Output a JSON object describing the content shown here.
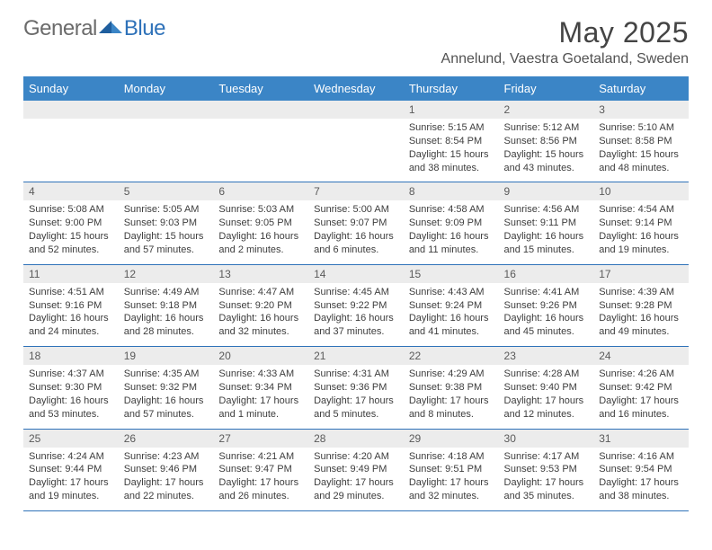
{
  "brand": {
    "part1": "General",
    "part2": "Blue"
  },
  "title": "May 2025",
  "location": "Annelund, Vaestra Goetaland, Sweden",
  "colors": {
    "header_bg": "#3b85c6",
    "header_text": "#ffffff",
    "daynum_bg": "#ececec",
    "rule": "#2f72b9",
    "brand_blue": "#2f72b9",
    "text": "#3d3d3d"
  },
  "weekdays": [
    "Sunday",
    "Monday",
    "Tuesday",
    "Wednesday",
    "Thursday",
    "Friday",
    "Saturday"
  ],
  "weeks": [
    [
      {
        "n": "",
        "sr": "",
        "ss": "",
        "dl": ""
      },
      {
        "n": "",
        "sr": "",
        "ss": "",
        "dl": ""
      },
      {
        "n": "",
        "sr": "",
        "ss": "",
        "dl": ""
      },
      {
        "n": "",
        "sr": "",
        "ss": "",
        "dl": ""
      },
      {
        "n": "1",
        "sr": "Sunrise: 5:15 AM",
        "ss": "Sunset: 8:54 PM",
        "dl": "Daylight: 15 hours and 38 minutes."
      },
      {
        "n": "2",
        "sr": "Sunrise: 5:12 AM",
        "ss": "Sunset: 8:56 PM",
        "dl": "Daylight: 15 hours and 43 minutes."
      },
      {
        "n": "3",
        "sr": "Sunrise: 5:10 AM",
        "ss": "Sunset: 8:58 PM",
        "dl": "Daylight: 15 hours and 48 minutes."
      }
    ],
    [
      {
        "n": "4",
        "sr": "Sunrise: 5:08 AM",
        "ss": "Sunset: 9:00 PM",
        "dl": "Daylight: 15 hours and 52 minutes."
      },
      {
        "n": "5",
        "sr": "Sunrise: 5:05 AM",
        "ss": "Sunset: 9:03 PM",
        "dl": "Daylight: 15 hours and 57 minutes."
      },
      {
        "n": "6",
        "sr": "Sunrise: 5:03 AM",
        "ss": "Sunset: 9:05 PM",
        "dl": "Daylight: 16 hours and 2 minutes."
      },
      {
        "n": "7",
        "sr": "Sunrise: 5:00 AM",
        "ss": "Sunset: 9:07 PM",
        "dl": "Daylight: 16 hours and 6 minutes."
      },
      {
        "n": "8",
        "sr": "Sunrise: 4:58 AM",
        "ss": "Sunset: 9:09 PM",
        "dl": "Daylight: 16 hours and 11 minutes."
      },
      {
        "n": "9",
        "sr": "Sunrise: 4:56 AM",
        "ss": "Sunset: 9:11 PM",
        "dl": "Daylight: 16 hours and 15 minutes."
      },
      {
        "n": "10",
        "sr": "Sunrise: 4:54 AM",
        "ss": "Sunset: 9:14 PM",
        "dl": "Daylight: 16 hours and 19 minutes."
      }
    ],
    [
      {
        "n": "11",
        "sr": "Sunrise: 4:51 AM",
        "ss": "Sunset: 9:16 PM",
        "dl": "Daylight: 16 hours and 24 minutes."
      },
      {
        "n": "12",
        "sr": "Sunrise: 4:49 AM",
        "ss": "Sunset: 9:18 PM",
        "dl": "Daylight: 16 hours and 28 minutes."
      },
      {
        "n": "13",
        "sr": "Sunrise: 4:47 AM",
        "ss": "Sunset: 9:20 PM",
        "dl": "Daylight: 16 hours and 32 minutes."
      },
      {
        "n": "14",
        "sr": "Sunrise: 4:45 AM",
        "ss": "Sunset: 9:22 PM",
        "dl": "Daylight: 16 hours and 37 minutes."
      },
      {
        "n": "15",
        "sr": "Sunrise: 4:43 AM",
        "ss": "Sunset: 9:24 PM",
        "dl": "Daylight: 16 hours and 41 minutes."
      },
      {
        "n": "16",
        "sr": "Sunrise: 4:41 AM",
        "ss": "Sunset: 9:26 PM",
        "dl": "Daylight: 16 hours and 45 minutes."
      },
      {
        "n": "17",
        "sr": "Sunrise: 4:39 AM",
        "ss": "Sunset: 9:28 PM",
        "dl": "Daylight: 16 hours and 49 minutes."
      }
    ],
    [
      {
        "n": "18",
        "sr": "Sunrise: 4:37 AM",
        "ss": "Sunset: 9:30 PM",
        "dl": "Daylight: 16 hours and 53 minutes."
      },
      {
        "n": "19",
        "sr": "Sunrise: 4:35 AM",
        "ss": "Sunset: 9:32 PM",
        "dl": "Daylight: 16 hours and 57 minutes."
      },
      {
        "n": "20",
        "sr": "Sunrise: 4:33 AM",
        "ss": "Sunset: 9:34 PM",
        "dl": "Daylight: 17 hours and 1 minute."
      },
      {
        "n": "21",
        "sr": "Sunrise: 4:31 AM",
        "ss": "Sunset: 9:36 PM",
        "dl": "Daylight: 17 hours and 5 minutes."
      },
      {
        "n": "22",
        "sr": "Sunrise: 4:29 AM",
        "ss": "Sunset: 9:38 PM",
        "dl": "Daylight: 17 hours and 8 minutes."
      },
      {
        "n": "23",
        "sr": "Sunrise: 4:28 AM",
        "ss": "Sunset: 9:40 PM",
        "dl": "Daylight: 17 hours and 12 minutes."
      },
      {
        "n": "24",
        "sr": "Sunrise: 4:26 AM",
        "ss": "Sunset: 9:42 PM",
        "dl": "Daylight: 17 hours and 16 minutes."
      }
    ],
    [
      {
        "n": "25",
        "sr": "Sunrise: 4:24 AM",
        "ss": "Sunset: 9:44 PM",
        "dl": "Daylight: 17 hours and 19 minutes."
      },
      {
        "n": "26",
        "sr": "Sunrise: 4:23 AM",
        "ss": "Sunset: 9:46 PM",
        "dl": "Daylight: 17 hours and 22 minutes."
      },
      {
        "n": "27",
        "sr": "Sunrise: 4:21 AM",
        "ss": "Sunset: 9:47 PM",
        "dl": "Daylight: 17 hours and 26 minutes."
      },
      {
        "n": "28",
        "sr": "Sunrise: 4:20 AM",
        "ss": "Sunset: 9:49 PM",
        "dl": "Daylight: 17 hours and 29 minutes."
      },
      {
        "n": "29",
        "sr": "Sunrise: 4:18 AM",
        "ss": "Sunset: 9:51 PM",
        "dl": "Daylight: 17 hours and 32 minutes."
      },
      {
        "n": "30",
        "sr": "Sunrise: 4:17 AM",
        "ss": "Sunset: 9:53 PM",
        "dl": "Daylight: 17 hours and 35 minutes."
      },
      {
        "n": "31",
        "sr": "Sunrise: 4:16 AM",
        "ss": "Sunset: 9:54 PM",
        "dl": "Daylight: 17 hours and 38 minutes."
      }
    ]
  ]
}
